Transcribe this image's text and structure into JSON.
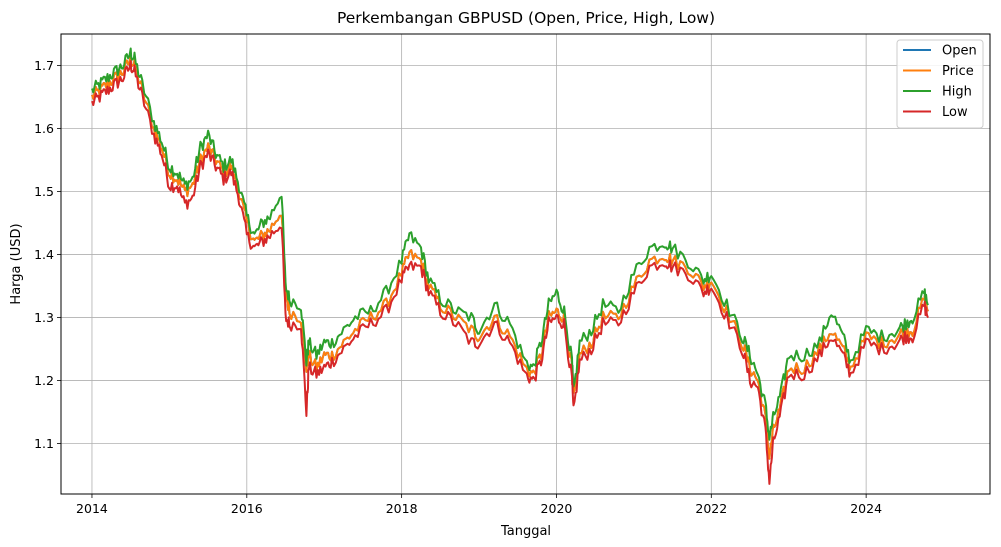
{
  "chart_data": {
    "type": "line",
    "title": "Perkembangan GBPUSD (Open, Price, High, Low)",
    "xlabel": "Tanggal",
    "ylabel": "Harga (USD)",
    "xlim": [
      2013.6,
      2025.6
    ],
    "ylim": [
      1.02,
      1.75
    ],
    "x_ticks": [
      2014,
      2016,
      2018,
      2020,
      2022,
      2024
    ],
    "x_tick_labels": [
      "2014",
      "2016",
      "2018",
      "2020",
      "2022",
      "2024"
    ],
    "y_ticks": [
      1.1,
      1.2,
      1.3,
      1.4,
      1.5,
      1.6,
      1.7
    ],
    "y_tick_labels": [
      "1.1",
      "1.2",
      "1.3",
      "1.4",
      "1.5",
      "1.6",
      "1.7"
    ],
    "grid": true,
    "legend_position": "top-right",
    "x": [
      2014.0,
      2014.1,
      2014.2,
      2014.3,
      2014.4,
      2014.5,
      2014.55,
      2014.65,
      2014.8,
      2014.9,
      2015.0,
      2015.1,
      2015.2,
      2015.3,
      2015.4,
      2015.5,
      2015.6,
      2015.7,
      2015.8,
      2015.9,
      2016.0,
      2016.1,
      2016.2,
      2016.3,
      2016.45,
      2016.5,
      2016.55,
      2016.7,
      2016.77,
      2016.8,
      2016.9,
      2017.0,
      2017.1,
      2017.25,
      2017.4,
      2017.6,
      2017.8,
      2018.0,
      2018.1,
      2018.25,
      2018.35,
      2018.5,
      2018.7,
      2018.9,
      2019.0,
      2019.2,
      2019.4,
      2019.6,
      2019.7,
      2019.8,
      2019.9,
      2020.0,
      2020.1,
      2020.2,
      2020.22,
      2020.3,
      2020.45,
      2020.6,
      2020.8,
      2021.0,
      2021.2,
      2021.4,
      2021.5,
      2021.7,
      2021.9,
      2022.0,
      2022.2,
      2022.4,
      2022.5,
      2022.6,
      2022.7,
      2022.75,
      2022.8,
      2022.9,
      2023.0,
      2023.2,
      2023.4,
      2023.55,
      2023.7,
      2023.8,
      2024.0,
      2024.2,
      2024.4,
      2024.5,
      2024.6,
      2024.75,
      2024.8
    ],
    "series": [
      {
        "name": "Open",
        "color": "#1f77b4",
        "offset": 0.0,
        "values": [
          1.65,
          1.66,
          1.67,
          1.68,
          1.69,
          1.71,
          1.7,
          1.66,
          1.6,
          1.57,
          1.53,
          1.52,
          1.5,
          1.51,
          1.55,
          1.57,
          1.55,
          1.53,
          1.54,
          1.5,
          1.45,
          1.42,
          1.43,
          1.44,
          1.47,
          1.34,
          1.31,
          1.3,
          1.22,
          1.24,
          1.22,
          1.24,
          1.24,
          1.26,
          1.28,
          1.3,
          1.32,
          1.37,
          1.4,
          1.39,
          1.35,
          1.32,
          1.3,
          1.28,
          1.27,
          1.3,
          1.27,
          1.22,
          1.21,
          1.24,
          1.3,
          1.31,
          1.3,
          1.22,
          1.17,
          1.24,
          1.26,
          1.3,
          1.3,
          1.35,
          1.39,
          1.4,
          1.39,
          1.38,
          1.35,
          1.36,
          1.31,
          1.26,
          1.22,
          1.2,
          1.14,
          1.08,
          1.12,
          1.16,
          1.22,
          1.22,
          1.25,
          1.28,
          1.25,
          1.22,
          1.27,
          1.26,
          1.27,
          1.28,
          1.28,
          1.33,
          1.31
        ]
      },
      {
        "name": "Price",
        "color": "#ff7f0e",
        "offset": 0.0,
        "values": [
          1.65,
          1.66,
          1.67,
          1.68,
          1.69,
          1.71,
          1.7,
          1.66,
          1.6,
          1.57,
          1.53,
          1.52,
          1.5,
          1.51,
          1.55,
          1.57,
          1.55,
          1.53,
          1.54,
          1.5,
          1.45,
          1.42,
          1.43,
          1.44,
          1.47,
          1.34,
          1.31,
          1.3,
          1.22,
          1.24,
          1.22,
          1.24,
          1.24,
          1.26,
          1.28,
          1.3,
          1.32,
          1.37,
          1.4,
          1.39,
          1.35,
          1.32,
          1.3,
          1.28,
          1.27,
          1.3,
          1.27,
          1.22,
          1.21,
          1.24,
          1.3,
          1.31,
          1.3,
          1.22,
          1.17,
          1.24,
          1.26,
          1.3,
          1.3,
          1.35,
          1.39,
          1.4,
          1.39,
          1.38,
          1.35,
          1.36,
          1.31,
          1.26,
          1.22,
          1.2,
          1.14,
          1.08,
          1.12,
          1.16,
          1.22,
          1.22,
          1.25,
          1.28,
          1.25,
          1.22,
          1.27,
          1.26,
          1.27,
          1.28,
          1.28,
          1.33,
          1.31
        ]
      },
      {
        "name": "High",
        "color": "#2ca02c",
        "offset": 0.008,
        "values": [
          1.66,
          1.67,
          1.68,
          1.69,
          1.7,
          1.72,
          1.71,
          1.67,
          1.61,
          1.58,
          1.54,
          1.53,
          1.51,
          1.52,
          1.57,
          1.59,
          1.56,
          1.54,
          1.55,
          1.51,
          1.46,
          1.43,
          1.45,
          1.46,
          1.5,
          1.35,
          1.33,
          1.32,
          1.23,
          1.26,
          1.24,
          1.26,
          1.26,
          1.28,
          1.3,
          1.31,
          1.34,
          1.39,
          1.43,
          1.41,
          1.36,
          1.33,
          1.31,
          1.3,
          1.28,
          1.32,
          1.29,
          1.23,
          1.22,
          1.26,
          1.32,
          1.34,
          1.31,
          1.23,
          1.18,
          1.26,
          1.28,
          1.32,
          1.31,
          1.37,
          1.41,
          1.42,
          1.41,
          1.39,
          1.36,
          1.37,
          1.32,
          1.27,
          1.24,
          1.21,
          1.16,
          1.11,
          1.14,
          1.18,
          1.24,
          1.24,
          1.26,
          1.31,
          1.27,
          1.23,
          1.28,
          1.27,
          1.28,
          1.29,
          1.3,
          1.34,
          1.32
        ]
      },
      {
        "name": "Low",
        "color": "#d62728",
        "offset": -0.008,
        "values": [
          1.64,
          1.65,
          1.66,
          1.67,
          1.68,
          1.7,
          1.69,
          1.65,
          1.59,
          1.56,
          1.51,
          1.51,
          1.48,
          1.49,
          1.54,
          1.56,
          1.54,
          1.52,
          1.53,
          1.49,
          1.43,
          1.41,
          1.42,
          1.43,
          1.45,
          1.3,
          1.29,
          1.29,
          1.15,
          1.22,
          1.21,
          1.22,
          1.23,
          1.25,
          1.27,
          1.29,
          1.31,
          1.36,
          1.38,
          1.38,
          1.34,
          1.31,
          1.29,
          1.26,
          1.26,
          1.29,
          1.26,
          1.21,
          1.2,
          1.23,
          1.29,
          1.3,
          1.29,
          1.2,
          1.15,
          1.23,
          1.25,
          1.29,
          1.29,
          1.34,
          1.38,
          1.39,
          1.38,
          1.37,
          1.34,
          1.35,
          1.3,
          1.25,
          1.2,
          1.19,
          1.12,
          1.04,
          1.1,
          1.15,
          1.21,
          1.21,
          1.24,
          1.27,
          1.24,
          1.21,
          1.26,
          1.25,
          1.26,
          1.27,
          1.27,
          1.32,
          1.3
        ]
      }
    ]
  }
}
